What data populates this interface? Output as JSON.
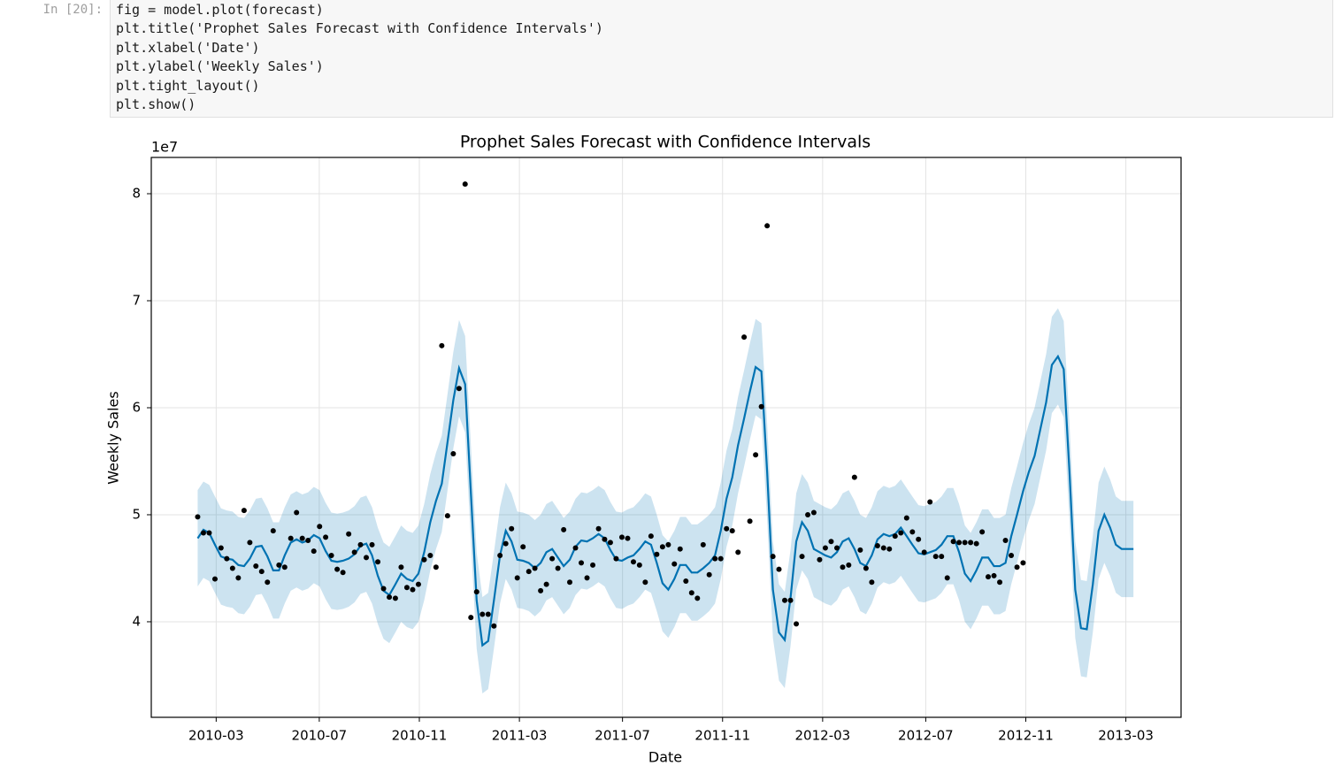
{
  "notebook": {
    "prompt": "In [20]:",
    "code_lines": [
      "fig = model.plot(forecast)",
      "plt.title('Prophet Sales Forecast with Confidence Intervals')",
      "plt.xlabel('Date')",
      "plt.ylabel('Weekly Sales')",
      "plt.tight_layout()",
      "plt.show()"
    ]
  },
  "chart_data": {
    "type": "forecast",
    "title": "Prophet Sales Forecast with Confidence Intervals",
    "x_label": "Date",
    "y_label": "Weekly Sales",
    "y_offset_label": "1e7",
    "grid": true,
    "xlim": [
      2009.946,
      2013.342
    ],
    "ylim": [
      3.107,
      8.339
    ],
    "xticks": [
      {
        "value": 2010.16,
        "label": "2010-03"
      },
      {
        "value": 2010.5,
        "label": "2010-07"
      },
      {
        "value": 2010.83,
        "label": "2010-11"
      },
      {
        "value": 2011.16,
        "label": "2011-03"
      },
      {
        "value": 2011.5,
        "label": "2011-07"
      },
      {
        "value": 2011.83,
        "label": "2011-11"
      },
      {
        "value": 2012.16,
        "label": "2012-03"
      },
      {
        "value": 2012.5,
        "label": "2012-07"
      },
      {
        "value": 2012.83,
        "label": "2012-11"
      },
      {
        "value": 2013.16,
        "label": "2013-03"
      }
    ],
    "yticks": [
      4,
      5,
      6,
      7,
      8
    ],
    "x": [
      2010.099,
      2010.118,
      2010.137,
      2010.156,
      2010.176,
      2010.195,
      2010.214,
      2010.233,
      2010.252,
      2010.271,
      2010.291,
      2010.31,
      2010.329,
      2010.348,
      2010.367,
      2010.386,
      2010.406,
      2010.425,
      2010.444,
      2010.463,
      2010.482,
      2010.501,
      2010.521,
      2010.54,
      2010.559,
      2010.578,
      2010.597,
      2010.616,
      2010.636,
      2010.655,
      2010.674,
      2010.693,
      2010.712,
      2010.731,
      2010.751,
      2010.77,
      2010.789,
      2010.808,
      2010.827,
      2010.846,
      2010.866,
      2010.885,
      2010.904,
      2010.923,
      2010.942,
      2010.961,
      2010.981,
      2011.0,
      2011.019,
      2011.038,
      2011.057,
      2011.076,
      2011.096,
      2011.115,
      2011.134,
      2011.153,
      2011.172,
      2011.191,
      2011.211,
      2011.23,
      2011.249,
      2011.268,
      2011.287,
      2011.306,
      2011.326,
      2011.345,
      2011.364,
      2011.383,
      2011.402,
      2011.421,
      2011.441,
      2011.46,
      2011.479,
      2011.498,
      2011.517,
      2011.536,
      2011.556,
      2011.575,
      2011.594,
      2011.613,
      2011.632,
      2011.651,
      2011.671,
      2011.69,
      2011.709,
      2011.728,
      2011.747,
      2011.766,
      2011.786,
      2011.805,
      2011.824,
      2011.843,
      2011.862,
      2011.881,
      2011.901,
      2011.92,
      2011.939,
      2011.958,
      2011.977,
      2011.996,
      2012.016,
      2012.035,
      2012.054,
      2012.073,
      2012.092,
      2012.111,
      2012.131,
      2012.15,
      2012.169,
      2012.188,
      2012.207,
      2012.226,
      2012.246,
      2012.265,
      2012.284,
      2012.303,
      2012.322,
      2012.341,
      2012.361,
      2012.38,
      2012.399,
      2012.418,
      2012.437,
      2012.456,
      2012.476,
      2012.495,
      2012.514,
      2012.533,
      2012.552,
      2012.571,
      2012.591,
      2012.61,
      2012.629,
      2012.648,
      2012.667,
      2012.686,
      2012.706,
      2012.725,
      2012.744,
      2012.763,
      2012.782,
      2012.801,
      2012.821,
      2012.84,
      2012.859,
      2012.878,
      2012.897,
      2012.916,
      2012.936,
      2012.955,
      2012.974,
      2012.993,
      2013.012,
      2013.031,
      2013.051,
      2013.07,
      2013.089,
      2013.108,
      2013.127,
      2013.146,
      2013.166,
      2013.185
    ],
    "series": [
      {
        "type": "band",
        "color": "#0072b2",
        "lower": [
          4.33,
          4.41,
          4.38,
          4.27,
          4.16,
          4.14,
          4.13,
          4.08,
          4.07,
          4.14,
          4.25,
          4.26,
          4.16,
          4.03,
          4.03,
          4.17,
          4.29,
          4.32,
          4.29,
          4.31,
          4.36,
          4.33,
          4.21,
          4.12,
          4.11,
          4.12,
          4.14,
          4.18,
          4.26,
          4.28,
          4.17,
          3.98,
          3.84,
          3.8,
          3.9,
          4.0,
          3.95,
          3.93,
          4.0,
          4.2,
          4.48,
          4.68,
          4.84,
          5.23,
          5.62,
          5.92,
          5.77,
          4.75,
          3.75,
          3.33,
          3.37,
          3.75,
          4.17,
          4.4,
          4.3,
          4.13,
          4.12,
          4.1,
          4.05,
          4.1,
          4.2,
          4.23,
          4.15,
          4.07,
          4.13,
          4.25,
          4.31,
          4.3,
          4.33,
          4.37,
          4.33,
          4.22,
          4.13,
          4.12,
          4.15,
          4.17,
          4.23,
          4.3,
          4.27,
          4.1,
          3.91,
          3.85,
          3.95,
          4.08,
          4.08,
          4.01,
          4.01,
          4.05,
          4.1,
          4.17,
          4.4,
          4.7,
          4.9,
          5.2,
          5.45,
          5.7,
          5.93,
          5.89,
          4.95,
          3.85,
          3.45,
          3.38,
          3.77,
          4.3,
          4.48,
          4.4,
          4.23,
          4.2,
          4.17,
          4.15,
          4.2,
          4.3,
          4.33,
          4.23,
          4.1,
          4.07,
          4.17,
          4.32,
          4.37,
          4.35,
          4.37,
          4.43,
          4.35,
          4.27,
          4.19,
          4.18,
          4.2,
          4.22,
          4.27,
          4.35,
          4.35,
          4.2,
          4.0,
          3.93,
          4.03,
          4.15,
          4.15,
          4.07,
          4.07,
          4.1,
          4.35,
          4.55,
          4.77,
          4.95,
          5.1,
          5.35,
          5.6,
          5.95,
          6.03,
          5.91,
          4.95,
          3.85,
          3.49,
          3.48,
          3.9,
          4.4,
          4.55,
          4.43,
          4.27,
          4.23,
          4.23,
          4.23
        ],
        "upper": [
          5.23,
          5.31,
          5.28,
          5.17,
          5.06,
          5.04,
          5.03,
          4.98,
          4.97,
          5.04,
          5.15,
          5.16,
          5.06,
          4.93,
          4.93,
          5.07,
          5.19,
          5.22,
          5.19,
          5.21,
          5.26,
          5.23,
          5.11,
          5.02,
          5.01,
          5.02,
          5.04,
          5.08,
          5.16,
          5.18,
          5.07,
          4.88,
          4.74,
          4.7,
          4.8,
          4.9,
          4.85,
          4.83,
          4.9,
          5.1,
          5.38,
          5.58,
          5.74,
          6.13,
          6.52,
          6.82,
          6.67,
          5.65,
          4.65,
          4.23,
          4.27,
          4.65,
          5.07,
          5.3,
          5.2,
          5.03,
          5.02,
          5.0,
          4.95,
          5.0,
          5.1,
          5.13,
          5.05,
          4.97,
          5.03,
          5.15,
          5.21,
          5.2,
          5.23,
          5.27,
          5.23,
          5.12,
          5.03,
          5.02,
          5.05,
          5.07,
          5.13,
          5.2,
          5.17,
          5.0,
          4.81,
          4.75,
          4.85,
          4.98,
          4.98,
          4.91,
          4.91,
          4.95,
          5.0,
          5.07,
          5.3,
          5.6,
          5.8,
          6.1,
          6.35,
          6.6,
          6.83,
          6.79,
          5.85,
          4.75,
          4.35,
          4.28,
          4.67,
          5.2,
          5.38,
          5.3,
          5.13,
          5.1,
          5.07,
          5.05,
          5.1,
          5.2,
          5.23,
          5.13,
          5.0,
          4.97,
          5.07,
          5.22,
          5.27,
          5.25,
          5.27,
          5.33,
          5.25,
          5.17,
          5.09,
          5.08,
          5.1,
          5.12,
          5.17,
          5.25,
          5.25,
          5.1,
          4.9,
          4.83,
          4.93,
          5.05,
          5.05,
          4.97,
          4.97,
          5.0,
          5.25,
          5.45,
          5.67,
          5.85,
          6.0,
          6.25,
          6.5,
          6.85,
          6.93,
          6.81,
          5.85,
          4.75,
          4.39,
          4.38,
          4.8,
          5.3,
          5.45,
          5.33,
          5.17,
          5.13,
          5.13,
          5.13
        ]
      },
      {
        "type": "line",
        "color": "#0072b2",
        "values": [
          4.78,
          4.86,
          4.83,
          4.72,
          4.61,
          4.59,
          4.58,
          4.53,
          4.52,
          4.59,
          4.7,
          4.71,
          4.61,
          4.48,
          4.48,
          4.62,
          4.74,
          4.77,
          4.74,
          4.76,
          4.81,
          4.78,
          4.66,
          4.57,
          4.56,
          4.57,
          4.59,
          4.63,
          4.71,
          4.73,
          4.62,
          4.43,
          4.29,
          4.25,
          4.35,
          4.45,
          4.4,
          4.38,
          4.45,
          4.65,
          4.93,
          5.13,
          5.29,
          5.68,
          6.07,
          6.37,
          6.22,
          5.2,
          4.2,
          3.78,
          3.82,
          4.2,
          4.62,
          4.85,
          4.75,
          4.58,
          4.57,
          4.55,
          4.5,
          4.55,
          4.65,
          4.68,
          4.6,
          4.52,
          4.58,
          4.7,
          4.76,
          4.75,
          4.78,
          4.82,
          4.78,
          4.67,
          4.58,
          4.57,
          4.6,
          4.62,
          4.68,
          4.75,
          4.72,
          4.55,
          4.36,
          4.3,
          4.4,
          4.53,
          4.53,
          4.46,
          4.46,
          4.5,
          4.55,
          4.62,
          4.85,
          5.15,
          5.35,
          5.65,
          5.9,
          6.15,
          6.38,
          6.34,
          5.4,
          4.3,
          3.9,
          3.83,
          4.22,
          4.75,
          4.93,
          4.85,
          4.68,
          4.65,
          4.62,
          4.6,
          4.65,
          4.75,
          4.78,
          4.68,
          4.55,
          4.52,
          4.62,
          4.77,
          4.82,
          4.8,
          4.82,
          4.88,
          4.8,
          4.72,
          4.64,
          4.63,
          4.65,
          4.67,
          4.72,
          4.8,
          4.8,
          4.65,
          4.45,
          4.38,
          4.48,
          4.6,
          4.6,
          4.52,
          4.52,
          4.55,
          4.8,
          5.0,
          5.22,
          5.4,
          5.55,
          5.8,
          6.05,
          6.4,
          6.48,
          6.36,
          5.4,
          4.3,
          3.94,
          3.93,
          4.35,
          4.85,
          5.0,
          4.88,
          4.72,
          4.68,
          4.68,
          4.68
        ]
      },
      {
        "type": "scatter",
        "color": "#000000",
        "values": [
          4.98,
          4.83,
          4.83,
          4.4,
          4.69,
          4.59,
          4.5,
          4.41,
          5.04,
          4.74,
          4.52,
          4.47,
          4.37,
          4.85,
          4.53,
          4.51,
          4.78,
          5.02,
          4.78,
          4.76,
          4.66,
          4.89,
          4.79,
          4.62,
          4.49,
          4.46,
          4.82,
          4.65,
          4.72,
          4.6,
          4.72,
          4.56,
          4.31,
          4.23,
          4.22,
          4.51,
          4.32,
          4.3,
          4.35,
          4.58,
          4.62,
          4.51,
          6.58,
          4.99,
          5.57,
          6.18,
          8.09,
          4.04,
          4.28,
          4.07,
          4.07,
          3.96,
          4.62,
          4.73,
          4.87,
          4.41,
          4.7,
          4.47,
          4.5,
          4.29,
          4.35,
          4.59,
          4.5,
          4.86,
          4.37,
          4.69,
          4.55,
          4.41,
          4.53,
          4.87,
          4.77,
          4.74,
          4.59,
          4.79,
          4.78,
          4.56,
          4.53,
          4.37,
          4.8,
          4.63,
          4.7,
          4.72,
          4.54,
          4.68,
          4.38,
          4.27,
          4.22,
          4.72,
          4.44,
          4.59,
          4.59,
          4.87,
          4.85,
          4.65,
          6.66,
          4.94,
          5.56,
          6.01,
          7.7,
          4.61,
          4.49,
          4.2,
          4.2,
          3.98,
          4.61,
          5.0,
          5.02,
          4.58,
          4.69,
          4.75,
          4.69,
          4.51,
          4.53,
          5.35,
          4.67,
          4.5,
          4.37,
          4.71,
          4.69,
          4.68,
          4.8,
          4.83,
          4.97,
          4.84,
          4.77,
          4.65,
          5.12,
          4.61,
          4.61,
          4.41,
          4.75,
          4.74,
          4.74,
          4.74,
          4.73,
          4.84,
          4.42,
          4.43,
          4.37,
          4.76,
          4.62,
          4.51,
          4.55,
          null,
          null,
          null,
          null,
          null,
          null,
          null,
          null,
          null,
          null,
          null,
          null,
          null,
          null,
          null,
          null,
          null,
          null,
          null
        ]
      }
    ]
  }
}
